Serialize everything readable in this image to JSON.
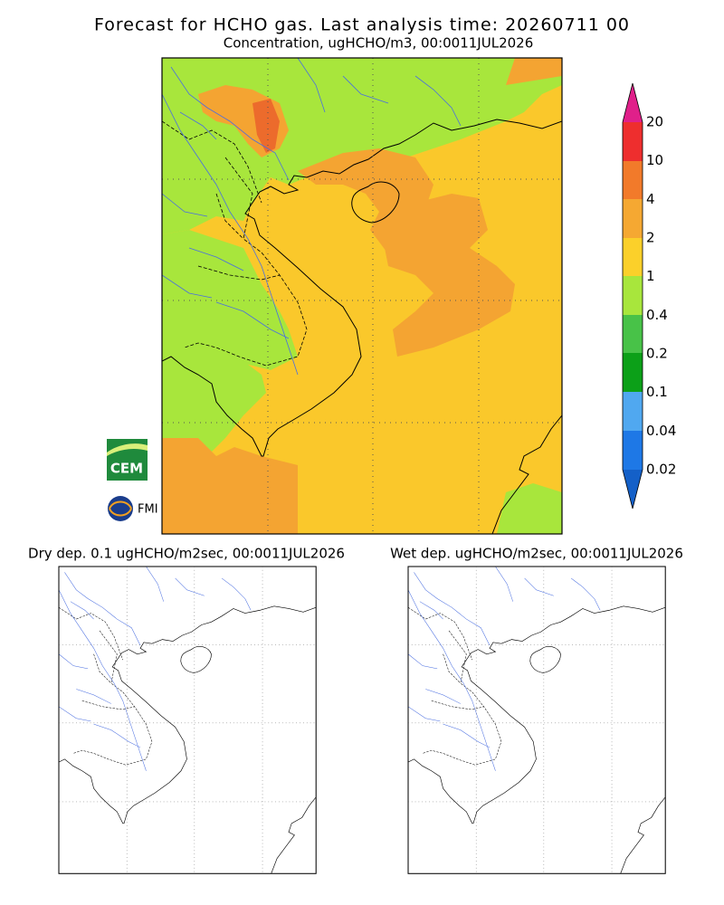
{
  "header": {
    "title": "Forecast for HCHO gas. Last analysis time: 20260711 00",
    "subtitle": "Concentration, ugHCHO/m3, 00:0011JUL2026"
  },
  "colorbar": {
    "labels": [
      "20",
      "10",
      "4",
      "2",
      "1",
      "0.4",
      "0.2",
      "0.1",
      "0.04",
      "0.02"
    ]
  },
  "panels": [
    {
      "title": "Dry dep. 0.1 ugHCHO/m2sec, 00:0011JUL2026"
    },
    {
      "title": "Wet dep. ugHCHO/m2sec, 00:0011JUL2026"
    }
  ],
  "logos": {
    "cem": "CEM",
    "fmi": "FMI"
  }
}
